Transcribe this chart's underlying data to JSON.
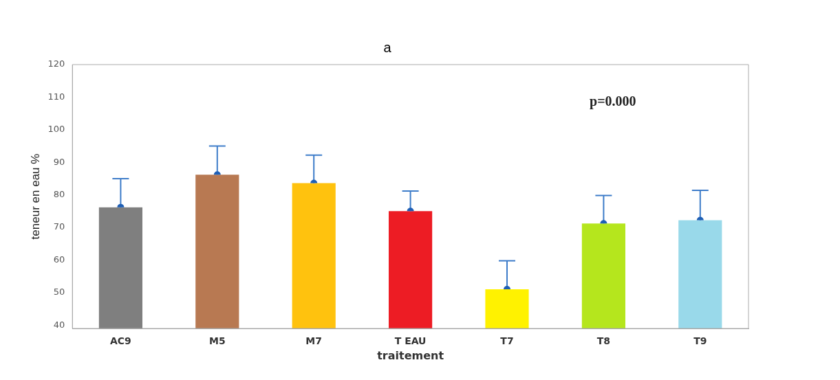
{
  "chart_data": {
    "type": "bar",
    "title": "a",
    "xlabel": "traitement",
    "ylabel": "teneur en eau %",
    "categories": [
      "AC9",
      "M5",
      "M7",
      "T EAU",
      "T7",
      "T8",
      "T9"
    ],
    "values": [
      76.2,
      86.2,
      83.6,
      75,
      51,
      71.2,
      72.2
    ],
    "colors": [
      "#7f7f7f",
      "#b87952",
      "#ffc20e",
      "#ed1c24",
      "#fff200",
      "#b5e61d",
      "#99d9ea"
    ],
    "errors": [
      [
        76.2,
        85
      ],
      [
        86.2,
        95
      ],
      [
        83.6,
        92.2
      ],
      [
        75,
        81.2
      ],
      [
        51,
        59.8
      ],
      [
        71.2,
        79.8
      ],
      [
        72.2,
        81.4
      ]
    ],
    "ylim": [
      39,
      120
    ],
    "yticks": [
      40,
      50,
      60,
      70,
      80,
      90,
      100,
      110,
      120
    ],
    "grid": false,
    "annotations": [
      "p=0.000"
    ]
  }
}
